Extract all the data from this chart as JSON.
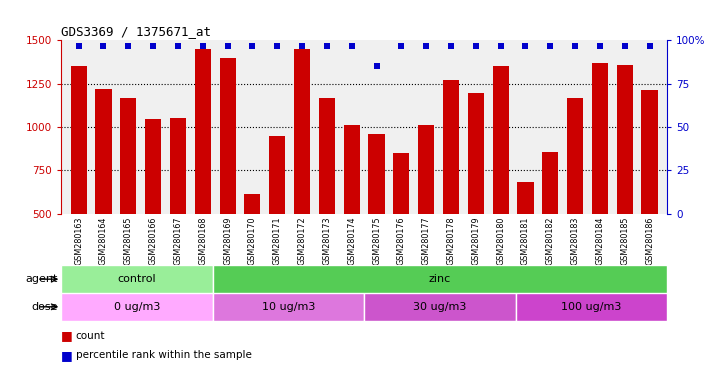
{
  "title": "GDS3369 / 1375671_at",
  "samples": [
    "GSM280163",
    "GSM280164",
    "GSM280165",
    "GSM280166",
    "GSM280167",
    "GSM280168",
    "GSM280169",
    "GSM280170",
    "GSM280171",
    "GSM280172",
    "GSM280173",
    "GSM280174",
    "GSM280175",
    "GSM280176",
    "GSM280177",
    "GSM280178",
    "GSM280179",
    "GSM280180",
    "GSM280181",
    "GSM280182",
    "GSM280183",
    "GSM280184",
    "GSM280185",
    "GSM280186"
  ],
  "counts": [
    1350,
    1220,
    1165,
    1045,
    1050,
    1450,
    1400,
    615,
    950,
    1450,
    1165,
    1010,
    960,
    850,
    1010,
    1270,
    1195,
    1350,
    680,
    855,
    1165,
    1370,
    1360,
    1215
  ],
  "percentile_ranks": [
    97,
    97,
    97,
    97,
    97,
    97,
    97,
    97,
    97,
    97,
    97,
    97,
    85,
    97,
    97,
    97,
    97,
    97,
    97,
    97,
    97,
    97,
    97,
    97
  ],
  "bar_color": "#cc0000",
  "percentile_color": "#0000cc",
  "ylim_left": [
    500,
    1500
  ],
  "ylim_right": [
    0,
    100
  ],
  "yticks_left": [
    500,
    750,
    1000,
    1250,
    1500
  ],
  "yticks_right": [
    0,
    25,
    50,
    75,
    100
  ],
  "agent_groups": [
    {
      "label": "control",
      "start": 0,
      "end": 6,
      "color": "#99ee99"
    },
    {
      "label": "zinc",
      "start": 6,
      "end": 24,
      "color": "#55cc55"
    }
  ],
  "dose_groups": [
    {
      "label": "0 ug/m3",
      "start": 0,
      "end": 6,
      "color": "#ffaaff"
    },
    {
      "label": "10 ug/m3",
      "start": 6,
      "end": 12,
      "color": "#dd77dd"
    },
    {
      "label": "30 ug/m3",
      "start": 12,
      "end": 18,
      "color": "#cc55cc"
    },
    {
      "label": "100 ug/m3",
      "start": 18,
      "end": 24,
      "color": "#cc44cc"
    }
  ],
  "background_color": "#ffffff"
}
